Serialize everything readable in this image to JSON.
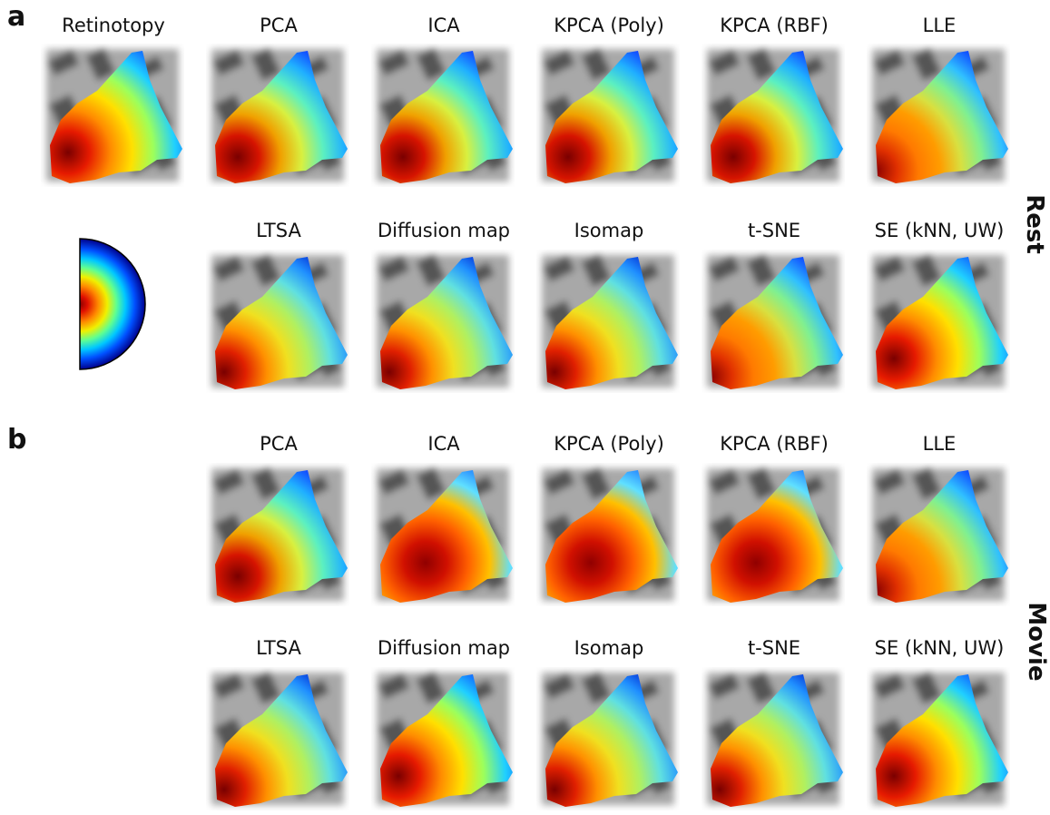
{
  "panels": [
    {
      "letter": "a",
      "condition": "Rest",
      "rows": [
        [
          "Retinotopy",
          "PCA",
          "ICA",
          "KPCA (Poly)",
          "KPCA (RBF)",
          "LLE"
        ],
        [
          "LTSA",
          "Diffusion map",
          "Isomap",
          "t-SNE",
          "SE (kNN, UW)"
        ]
      ]
    },
    {
      "letter": "b",
      "condition": "Movie",
      "rows": [
        [
          "PCA",
          "ICA",
          "KPCA (Poly)",
          "KPCA (RBF)",
          "LLE"
        ],
        [
          "LTSA",
          "Diffusion map",
          "Isomap",
          "t-SNE",
          "SE (kNN, UW)"
        ]
      ]
    }
  ],
  "legend": {
    "shape": "half-disc",
    "colormap": "jet",
    "description": "eccentricity"
  },
  "colors": {
    "jet_low": "#00007f",
    "jet_mid": "#7fff7f",
    "jet_high": "#7f0000",
    "background_gray": "#8c8c8c"
  }
}
